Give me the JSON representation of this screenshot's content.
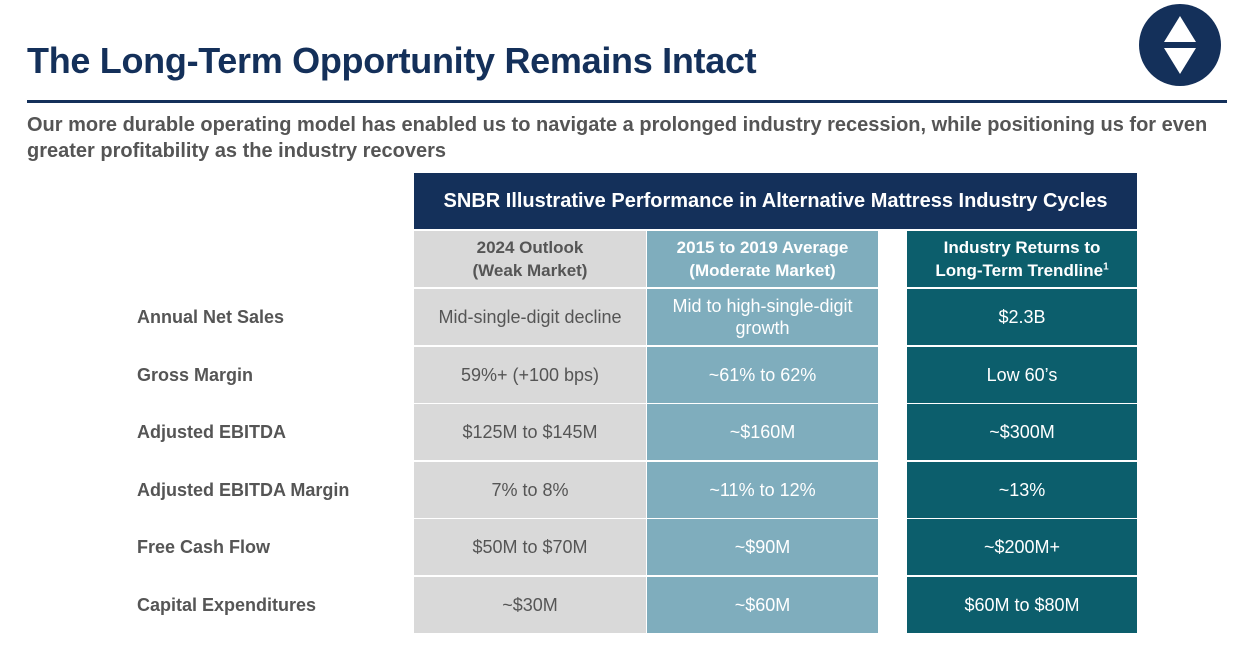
{
  "title": "The Long-Term Opportunity Remains Intact",
  "subtitle": "Our more durable operating model has enabled us to navigate a prolonged industry recession, while positioning us for even greater profitability as the industry recovers",
  "logo": {
    "icon": "up-down-triangles-logo",
    "color": "#14305a"
  },
  "table": {
    "header": "SNBR Illustrative Performance in Alternative Mattress Industry Cycles",
    "columns": [
      {
        "line1": "2024 Outlook",
        "line2": "(Weak Market)",
        "sup": "",
        "color": "#d9d9d9"
      },
      {
        "line1": "2015 to 2019 Average",
        "line2": "(Moderate Market)",
        "sup": "",
        "color": "#7fadbd"
      },
      {
        "line1": "Industry Returns to",
        "line2": "Long-Term Trendline",
        "sup": "1",
        "color": "#0c5e6c"
      }
    ],
    "rows": [
      {
        "label": "Annual Net Sales",
        "values": [
          "Mid-single-digit decline",
          "Mid to high-single-digit growth",
          "$2.3B"
        ]
      },
      {
        "label": "Gross Margin",
        "values": [
          "59%+ (+100 bps)",
          "~61% to 62%",
          "Low 60’s"
        ]
      },
      {
        "label": "Adjusted EBITDA",
        "values": [
          "$125M to $145M",
          "~$160M",
          "~$300M"
        ]
      },
      {
        "label": "Adjusted EBITDA Margin",
        "values": [
          "7% to 8%",
          "~11% to 12%",
          "~13%"
        ]
      },
      {
        "label": "Free Cash Flow",
        "values": [
          "$50M to $70M",
          "~$90M",
          "~$200M+"
        ]
      },
      {
        "label": "Capital Expenditures",
        "values": [
          "~$30M",
          "~$60M",
          "$60M to $80M"
        ]
      }
    ]
  }
}
